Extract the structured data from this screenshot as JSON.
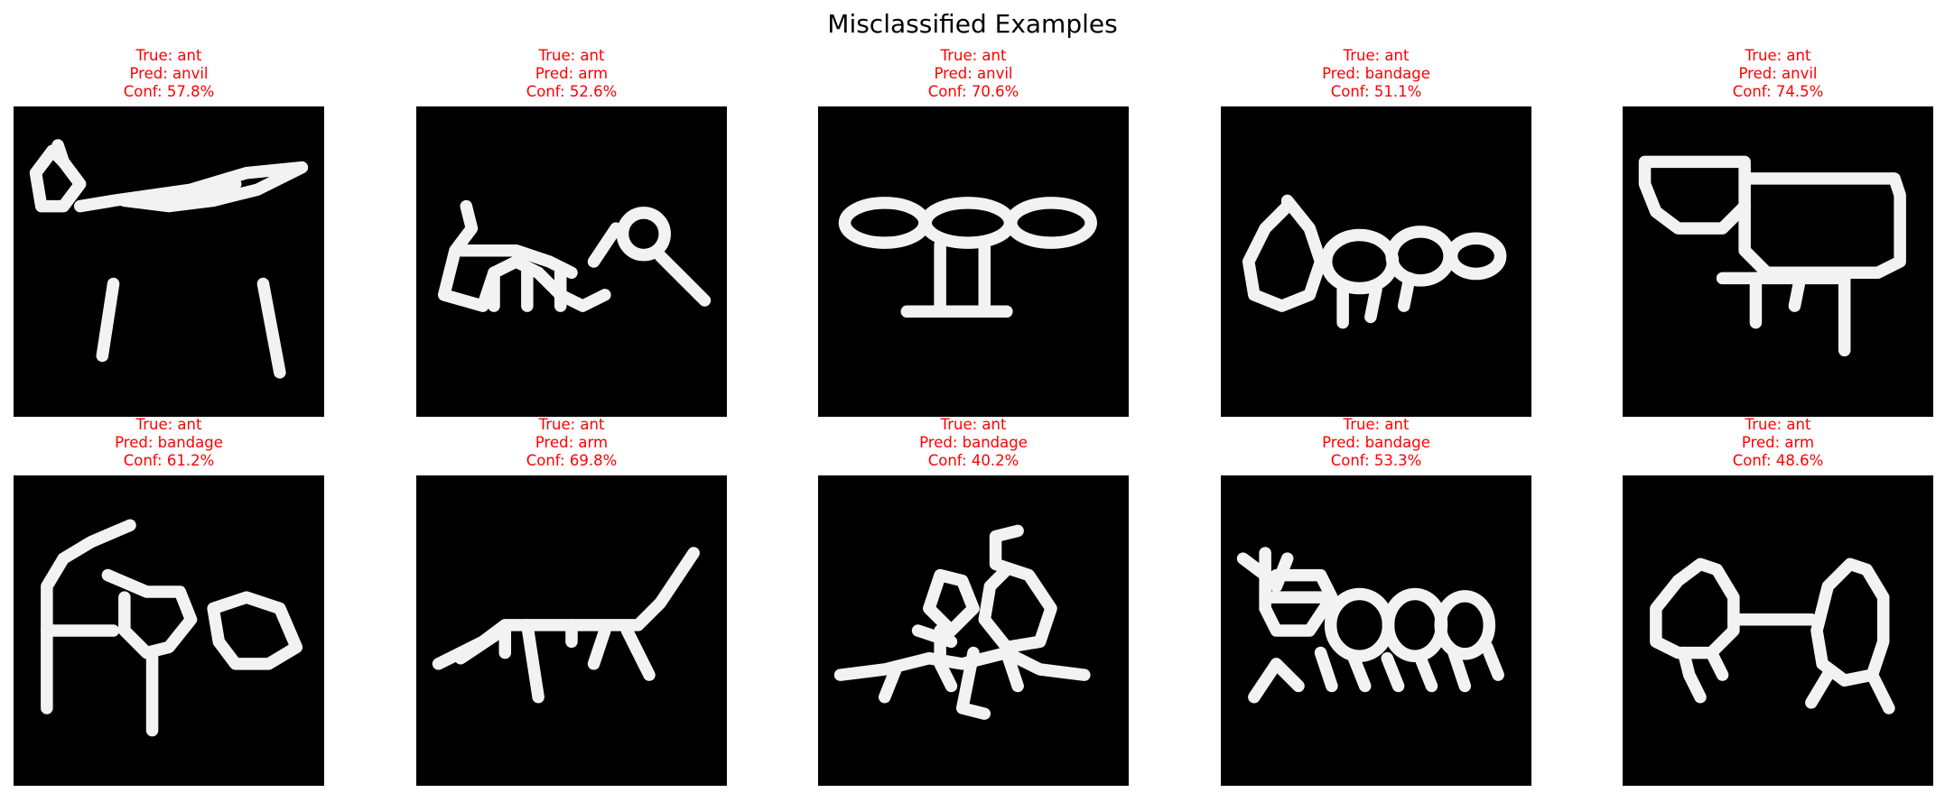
{
  "chart_data": {
    "type": "image-grid",
    "title": "Misclassified Examples",
    "title_color": "#000000",
    "label_color": "#ff0000",
    "rows": 2,
    "cols": 5,
    "panels": [
      {
        "true_line": "True: ant",
        "pred_line": "Pred: anvil",
        "conf_line": "Conf: 57.8%",
        "true": "ant",
        "pred": "anvil",
        "conf": 57.8,
        "drawing": "stick-figure-with-legs"
      },
      {
        "true_line": "True: ant",
        "pred_line": "Pred: arm",
        "conf_line": "Conf: 52.6%",
        "true": "ant",
        "pred": "arm",
        "conf": 52.6,
        "drawing": "segmented-ant-with-antenna"
      },
      {
        "true_line": "True: ant",
        "pred_line": "Pred: anvil",
        "conf_line": "Conf: 70.6%",
        "true": "ant",
        "pred": "anvil",
        "conf": 70.6,
        "drawing": "three-ovals-on-stand"
      },
      {
        "true_line": "True: ant",
        "pred_line": "Pred: bandage",
        "conf_line": "Conf: 51.1%",
        "true": "ant",
        "pred": "bandage",
        "conf": 51.1,
        "drawing": "three-circles-chain"
      },
      {
        "true_line": "True: ant",
        "pred_line": "Pred: anvil",
        "conf_line": "Conf: 74.5%",
        "true": "ant",
        "pred": "anvil",
        "conf": 74.5,
        "drawing": "box-shapes-with-legs"
      },
      {
        "true_line": "True: ant",
        "pred_line": "Pred: bandage",
        "conf_line": "Conf: 61.2%",
        "true": "ant",
        "pred": "bandage",
        "conf": 61.2,
        "drawing": "ant-with-antennae"
      },
      {
        "true_line": "True: ant",
        "pred_line": "Pred: arm",
        "conf_line": "Conf: 69.8%",
        "true": "ant",
        "pred": "arm",
        "conf": 69.8,
        "drawing": "long-body-ant"
      },
      {
        "true_line": "True: ant",
        "pred_line": "Pred: bandage",
        "conf_line": "Conf: 40.2%",
        "true": "ant",
        "pred": "bandage",
        "conf": 40.2,
        "drawing": "scribble-ant"
      },
      {
        "true_line": "True: ant",
        "pred_line": "Pred: bandage",
        "conf_line": "Conf: 53.3%",
        "true": "ant",
        "pred": "bandage",
        "conf": 53.3,
        "drawing": "round-segments-many-legs"
      },
      {
        "true_line": "True: ant",
        "pred_line": "Pred: arm",
        "conf_line": "Conf: 48.6%",
        "true": "ant",
        "pred": "arm",
        "conf": 48.6,
        "drawing": "two-ovals-dumbbell"
      }
    ]
  }
}
